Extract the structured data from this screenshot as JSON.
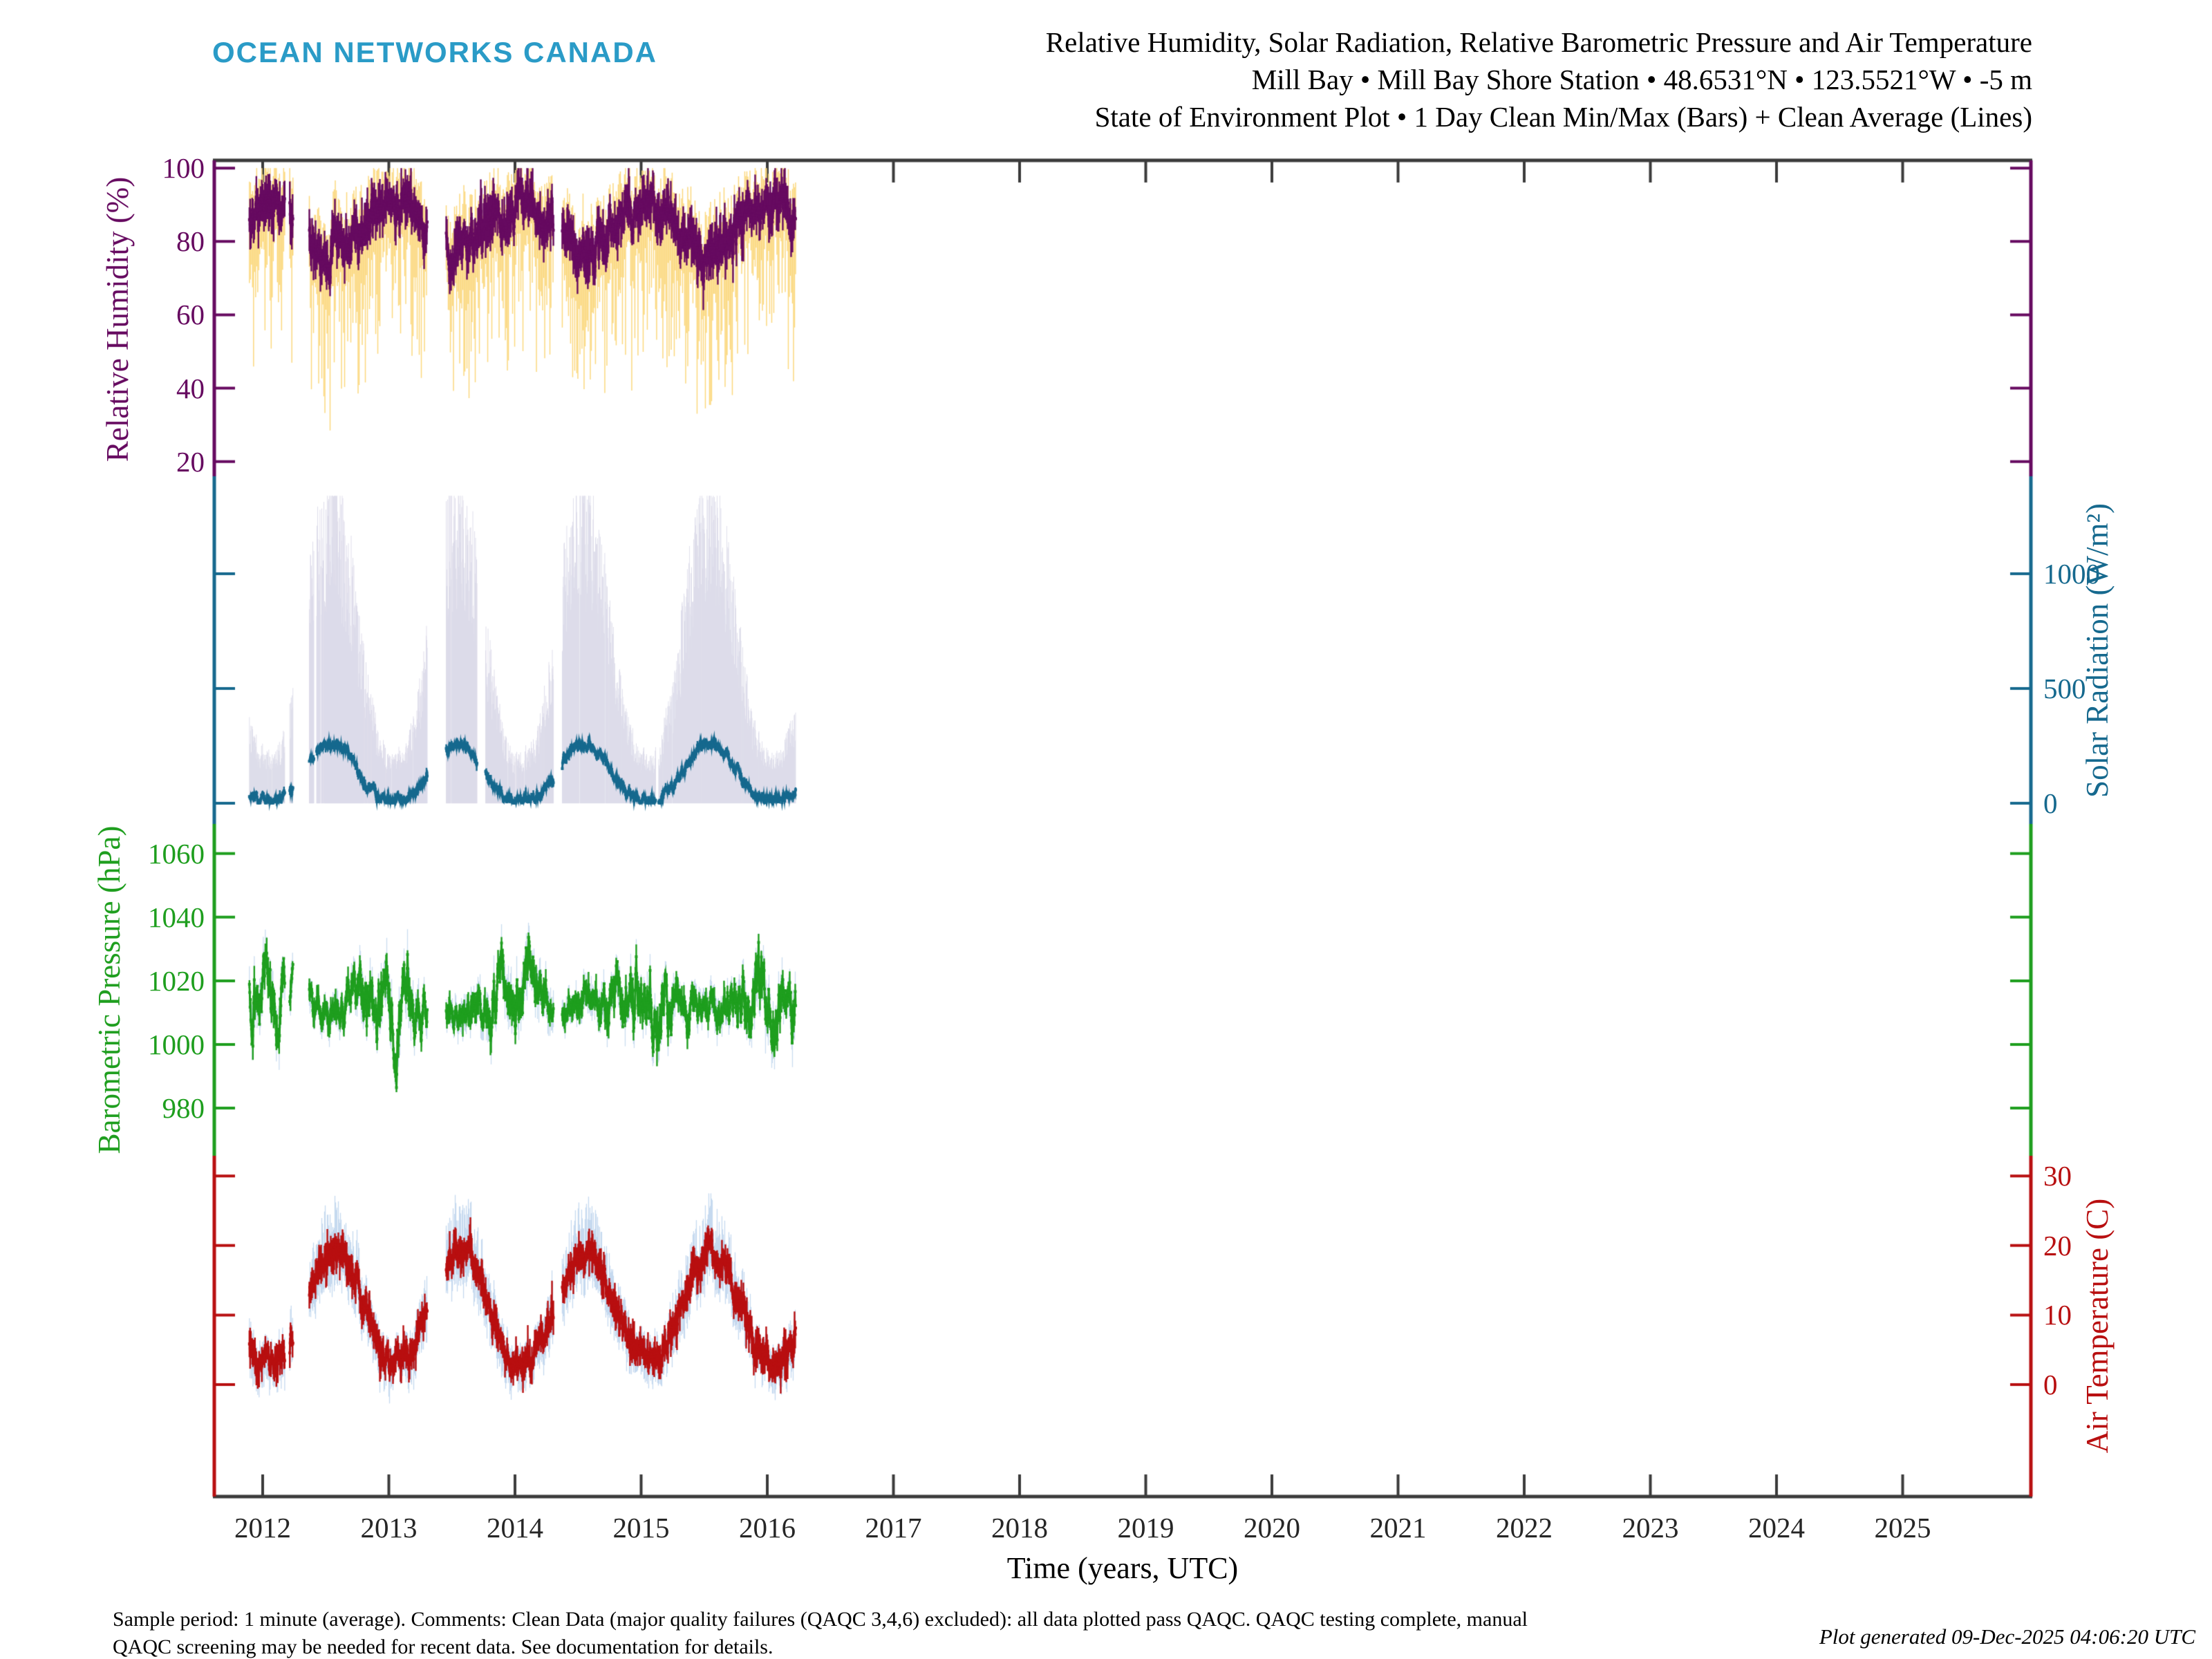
{
  "logo": {
    "text": "OCEAN NETWORKS CANADA",
    "color": "#2A9BC7"
  },
  "title": {
    "line1": "Relative Humidity, Solar Radiation, Relative Barometric Pressure and Air Temperature",
    "line2": "Mill Bay • Mill Bay Shore Station • 48.6531°N • 123.5521°W • -5 m",
    "line3": "State of Environment Plot • 1 Day Clean Min/Max (Bars) + Clean Average (Lines)"
  },
  "x_axis": {
    "label": "Time (years, UTC)",
    "years": [
      2012,
      2013,
      2014,
      2015,
      2016,
      2017,
      2018,
      2019,
      2020,
      2021,
      2022,
      2023,
      2024,
      2025
    ],
    "range": [
      2011.6,
      2026.05
    ]
  },
  "footer": {
    "line1": "Sample period: 1 minute (average). Comments: Clean Data (major quality failures (QAQC 3,4,6) excluded): all data plotted pass QAQC. QAQC testing complete, manual",
    "line2": "QAQC screening may be needed for recent data. See documentation for details.",
    "generated": "Plot generated 09-Dec-2025 04:06:20 UTC"
  },
  "colors": {
    "frame": "#3B3B3B",
    "background": "#FFFFFF",
    "year_label": "#262626"
  },
  "chart_data": [
    {
      "id": "humidity",
      "type": "line",
      "name": "Relative Humidity",
      "ylabel": "Relative Humidity (%)",
      "axis": "left",
      "unit": "%",
      "line_color": "#660A60",
      "bar_color": "#FBD87E",
      "ticks": [
        100,
        80,
        60,
        40,
        20
      ],
      "ylim": [
        16,
        102.1
      ],
      "segments": [
        [
          2011.895,
          2012.175
        ],
        [
          2012.215,
          2012.24
        ],
        [
          2012.37,
          2013.305
        ],
        [
          2013.455,
          2014.305
        ],
        [
          2014.375,
          2016.225
        ]
      ],
      "model": {
        "seed": 101,
        "phase": 0.03,
        "ar": 0.78,
        "sd": 3.2,
        "base": 84,
        "amp": 6.5,
        "vclamp": [
          23,
          100
        ],
        "bar_step": 3,
        "bar_width": 1.5,
        "summary": "winter averages 88-95%, spring/summer dips to 65-80%, min bars reach 25-60%, max bars near 100%"
      }
    },
    {
      "id": "solar",
      "type": "line",
      "name": "Solar Radiation",
      "ylabel": "Solar Radiation (W/m²)",
      "axis": "right",
      "unit": "W/m²",
      "line_color": "#16698E",
      "bar_color": "#DBDAE9",
      "ticks": [
        1000,
        500,
        0
      ],
      "ylim": [
        -90,
        1425
      ],
      "segments": [
        [
          2011.895,
          2012.175
        ],
        [
          2012.215,
          2012.24
        ],
        [
          2012.37,
          2013.305
        ],
        [
          2013.455,
          2014.305
        ],
        [
          2014.375,
          2016.225
        ]
      ],
      "gaps": [
        [
          2012.408,
          2012.425
        ],
        [
          2013.7,
          2013.765
        ],
        [
          2015.115,
          2015.138
        ]
      ],
      "model": {
        "seed": 202,
        "phase": 0.545,
        "ar": 0.72,
        "sd": 16,
        "base": 14,
        "amp": 250,
        "vclamp": [
          0,
          1340
        ],
        "bar_step": 1,
        "bar_width": 0.9,
        "summary": "daily average ~20 W/m² in winter to ~280 W/m² in summer; daily max bars reach 1100-1340 W/m² in summer, 200-500 W/m² in winter; min is 0"
      }
    },
    {
      "id": "pressure",
      "type": "line",
      "name": "Barometric Pressure",
      "ylabel": "Barometric Pressure (hPa)",
      "axis": "left",
      "unit": "hPa",
      "line_color": "#1E9E1E",
      "bar_color": "#C9DCEF",
      "ticks": [
        1060,
        1040,
        1020,
        1000,
        980
      ],
      "ylim": [
        965,
        1069.3
      ],
      "segments": [
        [
          2011.895,
          2012.175
        ],
        [
          2012.215,
          2012.24
        ],
        [
          2012.37,
          2013.305
        ],
        [
          2013.455,
          2014.305
        ],
        [
          2014.375,
          2016.225
        ]
      ],
      "model": {
        "seed": 303,
        "phase": 0.03,
        "ar": 0.86,
        "sd": 2.4,
        "base": 1012.5,
        "amp": 1.3,
        "vclamp": [
          985,
          1046
        ],
        "bar_step": 2,
        "bar_width": 1.3,
        "summary": "mean ~1012 hPa; winter synoptic swings 995-1045 hPa, summer stable 1008-1020 hPa"
      }
    },
    {
      "id": "temp",
      "type": "line",
      "name": "Air Temperature",
      "ylabel": "Air Temperature (C)",
      "axis": "right",
      "unit": "C",
      "line_color": "#B80F10",
      "bar_color": "#C5D9EF",
      "ticks": [
        30,
        20,
        10,
        0
      ],
      "ylim": [
        -16.1,
        32.9
      ],
      "segments": [
        [
          2011.895,
          2012.175
        ],
        [
          2012.215,
          2012.24
        ],
        [
          2012.37,
          2013.305
        ],
        [
          2013.455,
          2014.305
        ],
        [
          2014.375,
          2016.225
        ]
      ],
      "model": {
        "seed": 404,
        "phase": 0.555,
        "ar": 0.82,
        "sd": 1.05,
        "base": 3.0,
        "amp": 15.8,
        "vclamp": [
          -6.5,
          27.5
        ],
        "bar_step": 2,
        "bar_width": 1.3,
        "summary": "seasonal cycle: winter averages 2-5 C (dips below 0), summer averages 18-20 C; daily min/max bars span roughly ±4 C"
      }
    }
  ]
}
